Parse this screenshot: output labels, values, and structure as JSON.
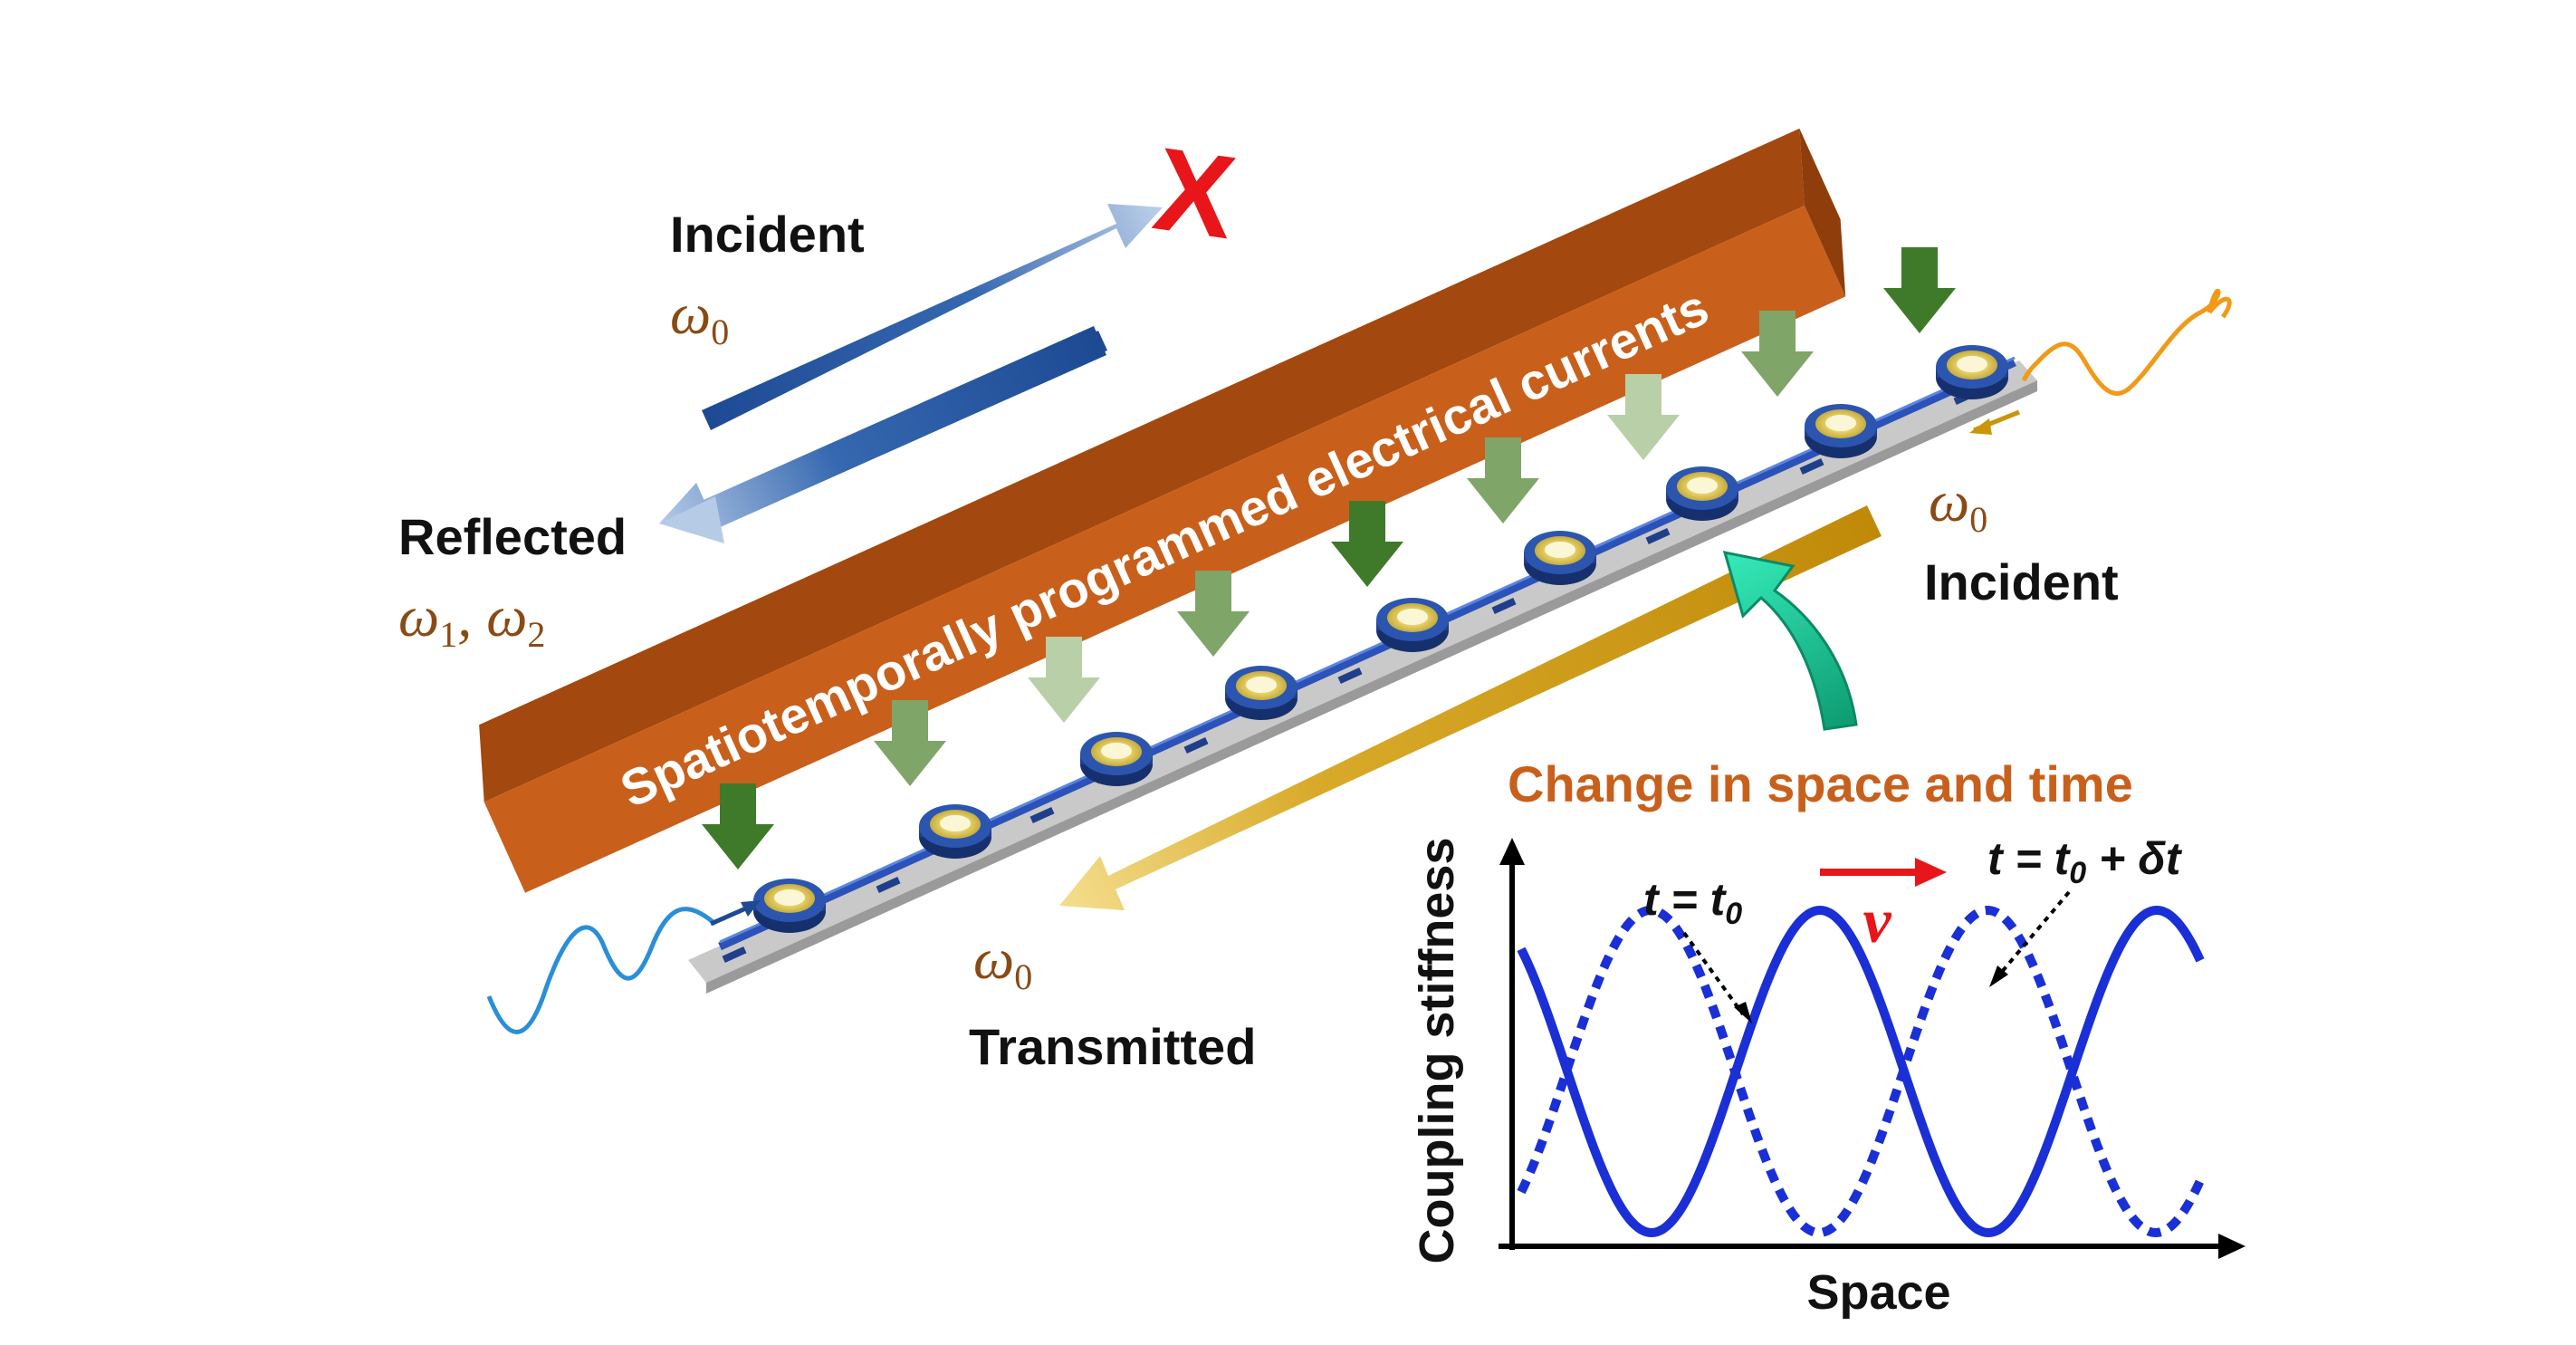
{
  "banner": {
    "text": "Spatiotemporally programmed electrical currents"
  },
  "labels": {
    "incident_left": "Incident",
    "reflected": "Reflected",
    "incident_right": "Incident",
    "transmitted": "Transmitted",
    "omega0_left": "ω0",
    "omega_reflected": "ω1, ω2",
    "omega0_right": "ω0",
    "omega0_bottom": "ω0",
    "blocked_mark": "X"
  },
  "inset": {
    "title": "Change in space and time",
    "xlabel": "Space",
    "ylabel": "Coupling stiffness",
    "curve_t0": "t = t0",
    "curve_t0_dt": "t = t0 + δt",
    "velocity": "v"
  },
  "colors": {
    "banner": "#c8601c",
    "incident_arrow": "#1e4a94",
    "transmitted_arrow": "#c9960a",
    "curve": "#1a2fd6",
    "velocity": "#e8161a",
    "blocked": "#e8161a",
    "title": "#c8601c",
    "green_dark": "#3e7a2a",
    "green_light": "#b9cfa8",
    "teal_arrow": "#1fcf9c",
    "wave_left": "#2a8ed8",
    "wave_right": "#f09a18"
  },
  "icons": [
    "green-down-arrow-icon",
    "resonator-icon",
    "blocked-x-icon",
    "curved-arrow-icon"
  ]
}
